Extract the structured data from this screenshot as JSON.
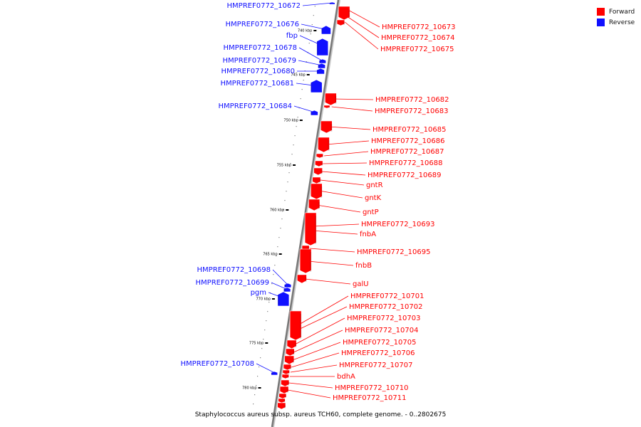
{
  "legend": {
    "forward_label": "Forward",
    "reverse_label": "Reverse",
    "forward_color": "#ff0000",
    "reverse_color": "#1010ff"
  },
  "caption": "Staphylococcus aureus subsp. aureus TCH60, complete genome. - 0..2802675",
  "ticks": [
    "740 kbp",
    "745 kbp",
    "750 kbp",
    "755 kbp",
    "760 kbp",
    "765 kbp",
    "770 kbp",
    "775 kbp",
    "780 kbp"
  ],
  "reverse_genes": [
    "HMPREF0772_10672",
    "HMPREF0772_10676",
    "fbp",
    "HMPREF0772_10678",
    "HMPREF0772_10679",
    "HMPREF0772_10680",
    "HMPREF0772_10681",
    "HMPREF0772_10684",
    "HMPREF0772_10698",
    "HMPREF0772_10699",
    "pgm",
    "HMPREF0772_10708"
  ],
  "forward_genes": [
    "HMPREF0772_10673",
    "HMPREF0772_10674",
    "HMPREF0772_10675",
    "HMPREF0772_10682",
    "HMPREF0772_10683",
    "HMPREF0772_10685",
    "HMPREF0772_10686",
    "HMPREF0772_10687",
    "HMPREF0772_10688",
    "HMPREF0772_10689",
    "gntR",
    "gntK",
    "gntP",
    "HMPREF0772_10693",
    "fnbA",
    "HMPREF0772_10695",
    "fnbB",
    "galU",
    "HMPREF0772_10701",
    "HMPREF0772_10702",
    "HMPREF0772_10703",
    "HMPREF0772_10704",
    "HMPREF0772_10705",
    "HMPREF0772_10706",
    "HMPREF0772_10707",
    "bdhA",
    "HMPREF0772_10710",
    "HMPREF0772_10711"
  ]
}
